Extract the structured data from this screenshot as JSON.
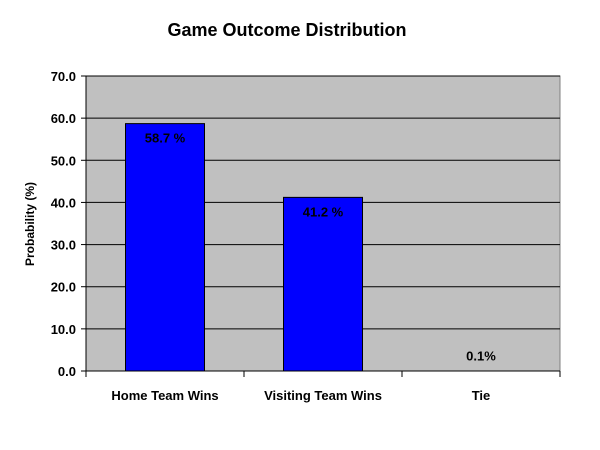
{
  "chart_data": {
    "type": "bar",
    "title": "Game Outcome Distribution",
    "xlabel": "",
    "ylabel": "Probability (%)",
    "categories": [
      "Home Team Wins",
      "Visiting Team Wins",
      "Tie"
    ],
    "values": [
      58.7,
      41.2,
      0.1
    ],
    "data_labels": [
      "58.7 %",
      "41.2 %",
      "0.1%"
    ],
    "ylim": [
      0,
      70
    ],
    "yticks": [
      "0.0",
      "10.0",
      "20.0",
      "30.0",
      "40.0",
      "50.0",
      "60.0",
      "70.0"
    ],
    "grid": true,
    "legend": "none",
    "colors": {
      "bar": "#0000ff",
      "plot_area": "#c0c0c0",
      "gridline": "#000000"
    }
  }
}
